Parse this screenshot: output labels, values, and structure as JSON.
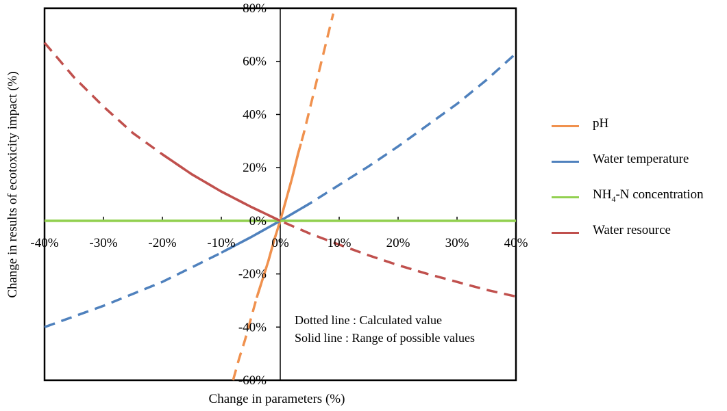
{
  "chart_data": {
    "type": "line",
    "xlabel": "Change in parameters (%)",
    "ylabel": "Change in results of ecotoxicity impact (%)",
    "xlim": [
      -40,
      40
    ],
    "ylim": [
      -60,
      80
    ],
    "x_ticks": [
      "-40%",
      "-30%",
      "-20%",
      "-10%",
      "0%",
      "10%",
      "20%",
      "30%",
      "40%"
    ],
    "y_ticks": [
      "80%",
      "60%",
      "40%",
      "20%",
      "0%",
      "-20%",
      "-40%",
      "-60%"
    ],
    "grid": false,
    "legend_position": "right",
    "annotations": [
      "Dotted line : Calculated value",
      "Solid line : Range of possible values"
    ],
    "series": [
      {
        "name": "pH",
        "name_main": "pH",
        "name_sub": "",
        "name_tail": "",
        "color": "#F0914E",
        "dashed_points": [
          [
            -8,
            -60
          ],
          [
            -7,
            -52
          ],
          [
            -6,
            -45
          ],
          [
            -5,
            -37
          ],
          [
            -4,
            -29
          ],
          [
            -3,
            -22
          ],
          [
            -2,
            -15
          ],
          [
            -1,
            -7
          ],
          [
            0,
            0
          ],
          [
            1,
            8
          ],
          [
            2,
            16
          ],
          [
            3,
            25
          ],
          [
            3.5,
            29
          ],
          [
            4,
            33
          ],
          [
            5,
            42
          ],
          [
            6,
            51
          ],
          [
            7,
            60
          ],
          [
            8,
            69
          ],
          [
            9,
            78
          ]
        ],
        "solid_range": [
          -4,
          3.5
        ]
      },
      {
        "name": "Water temperature",
        "name_main": "Water temperature",
        "name_sub": "",
        "name_tail": "",
        "color": "#4F81BD",
        "dashed_points": [
          [
            -40,
            -40
          ],
          [
            -35,
            -36
          ],
          [
            -30,
            -32
          ],
          [
            -25,
            -27.5
          ],
          [
            -20,
            -23
          ],
          [
            -15,
            -17.5
          ],
          [
            -10,
            -12
          ],
          [
            -5,
            -6.2
          ],
          [
            0,
            0
          ],
          [
            5,
            6.5
          ],
          [
            10,
            13.5
          ],
          [
            15,
            20.5
          ],
          [
            20,
            28
          ],
          [
            25,
            36
          ],
          [
            30,
            44
          ],
          [
            35,
            53
          ],
          [
            40,
            63
          ]
        ],
        "solid_range": [
          -12,
          6
        ]
      },
      {
        "name": "NH4-N concentration",
        "name_main": "NH",
        "name_sub": "4",
        "name_tail": "-N concentration",
        "color": "#92D050",
        "dashed_points": [
          [
            -40,
            0
          ],
          [
            40,
            0
          ]
        ],
        "solid_range": [
          -40,
          40
        ]
      },
      {
        "name": "Water resource",
        "name_main": "Water resource",
        "name_sub": "",
        "name_tail": "",
        "color": "#C0504D",
        "dashed_points": [
          [
            -40,
            67
          ],
          [
            -35,
            54
          ],
          [
            -30,
            43
          ],
          [
            -25,
            33
          ],
          [
            -20,
            25
          ],
          [
            -15,
            17.5
          ],
          [
            -10,
            11
          ],
          [
            -5,
            5.3
          ],
          [
            0,
            0
          ],
          [
            5,
            -4.8
          ],
          [
            10,
            -9
          ],
          [
            15,
            -13
          ],
          [
            20,
            -16.7
          ],
          [
            25,
            -20
          ],
          [
            30,
            -23
          ],
          [
            35,
            -26
          ],
          [
            40,
            -28.5
          ]
        ],
        "solid_range": [
          -20,
          0
        ]
      }
    ]
  }
}
